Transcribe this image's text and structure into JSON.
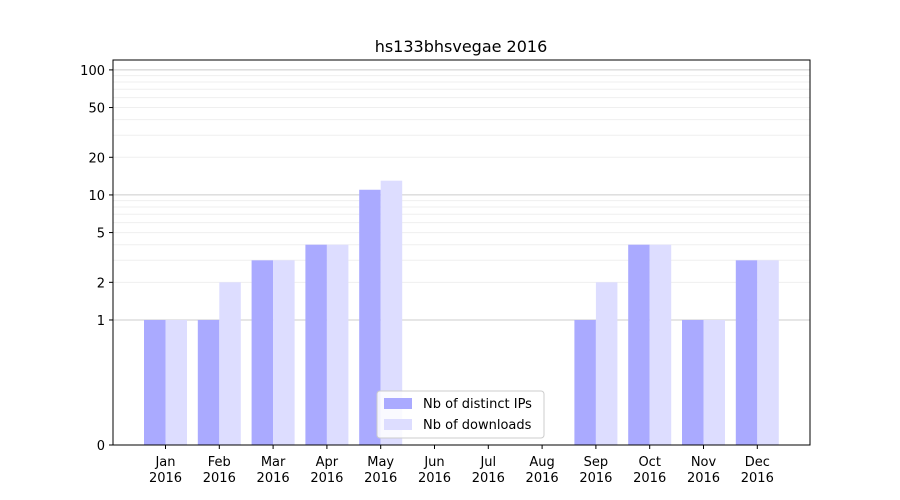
{
  "chart_data": {
    "type": "bar",
    "title": "hs133bhsvegae 2016",
    "xlabel": "",
    "ylabel": "",
    "yscale": "symlog",
    "ylim": [
      0,
      120
    ],
    "yticks": [
      0,
      1,
      2,
      5,
      10,
      20,
      50,
      100
    ],
    "ytick_labels": [
      "0",
      "1",
      "2",
      "5",
      "10",
      "20",
      "50",
      "100"
    ],
    "categories": [
      "Jan",
      "Feb",
      "Mar",
      "Apr",
      "May",
      "Jun",
      "Jul",
      "Aug",
      "Sep",
      "Oct",
      "Nov",
      "Dec"
    ],
    "category_year": "2016",
    "series": [
      {
        "name": "Nb of distinct IPs",
        "color": "#aaaaff",
        "values": [
          1,
          1,
          3,
          4,
          11,
          0,
          0,
          0,
          1,
          4,
          1,
          3
        ]
      },
      {
        "name": "Nb of downloads",
        "color": "#ddddff",
        "values": [
          1,
          2,
          3,
          4,
          13,
          0,
          0,
          0,
          2,
          4,
          1,
          3
        ]
      }
    ],
    "grid": true,
    "legend_position": "bottom-center"
  }
}
